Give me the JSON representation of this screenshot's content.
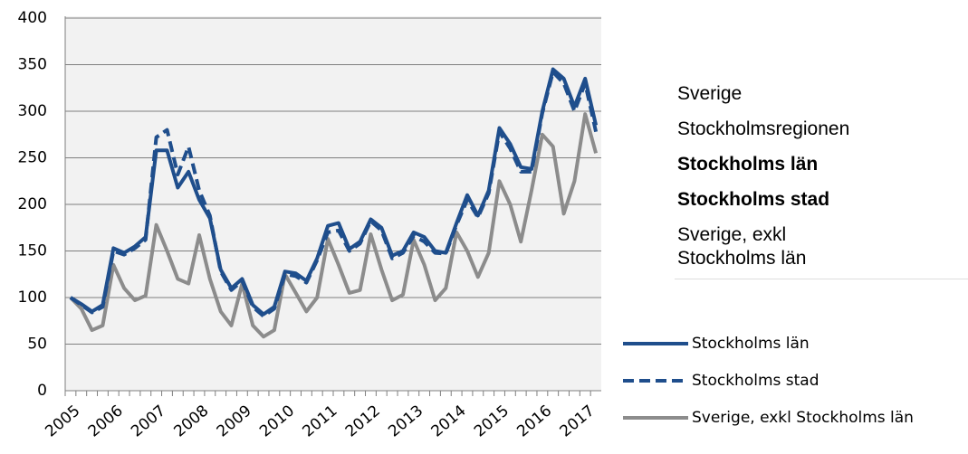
{
  "chart_data": {
    "type": "line",
    "categories": [
      "2005",
      null,
      null,
      null,
      "2006",
      null,
      null,
      null,
      "2007",
      null,
      null,
      null,
      "2008",
      null,
      null,
      null,
      "2009",
      null,
      null,
      null,
      "2010",
      null,
      null,
      null,
      "2011",
      null,
      null,
      null,
      "2012",
      null,
      null,
      null,
      "2013",
      null,
      null,
      null,
      "2014",
      null,
      null,
      null,
      "2015",
      null,
      null,
      null,
      "2016",
      null,
      null,
      null,
      "2017",
      null
    ],
    "series": [
      {
        "name": "Stockholms län",
        "color": "#1f4e8c",
        "dash": false,
        "values": [
          100,
          93,
          85,
          92,
          153,
          148,
          155,
          165,
          258,
          258,
          218,
          235,
          205,
          185,
          130,
          110,
          120,
          92,
          82,
          90,
          128,
          126,
          118,
          142,
          177,
          180,
          152,
          160,
          184,
          175,
          145,
          150,
          170,
          165,
          150,
          148,
          180,
          210,
          188,
          215,
          282,
          265,
          240,
          238,
          300,
          345,
          335,
          305,
          335,
          285
        ]
      },
      {
        "name": "Stockholms stad",
        "color": "#1f4e8c",
        "dash": true,
        "values": [
          100,
          92,
          84,
          90,
          150,
          146,
          153,
          162,
          272,
          280,
          232,
          262,
          215,
          188,
          128,
          108,
          118,
          90,
          80,
          88,
          125,
          123,
          116,
          140,
          170,
          172,
          150,
          158,
          182,
          172,
          142,
          148,
          166,
          160,
          148,
          147,
          178,
          205,
          186,
          212,
          278,
          260,
          235,
          235,
          298,
          342,
          330,
          300,
          330,
          278
        ]
      },
      {
        "name": "Sverige, exkl Stockholms län",
        "color": "#8c8c8c",
        "dash": false,
        "values": [
          100,
          88,
          65,
          70,
          135,
          110,
          97,
          102,
          178,
          150,
          120,
          115,
          167,
          120,
          85,
          70,
          115,
          70,
          58,
          65,
          125,
          105,
          85,
          100,
          163,
          135,
          105,
          108,
          168,
          130,
          97,
          103,
          162,
          135,
          97,
          110,
          170,
          150,
          122,
          148,
          225,
          200,
          160,
          215,
          275,
          262,
          190,
          225,
          297,
          255
        ]
      }
    ],
    "ylim": [
      0,
      400
    ],
    "yticks": [
      0,
      50,
      100,
      150,
      200,
      250,
      300,
      350,
      400
    ],
    "grid": true
  },
  "side_list": [
    {
      "text": "Sverige",
      "bold": false
    },
    {
      "text": "Stockholmsregionen",
      "bold": false
    },
    {
      "text": "Stockholms län",
      "bold": true
    },
    {
      "text": "Stockholms stad",
      "bold": true
    },
    {
      "text": "Sverige, exkl Stockholms län",
      "bold": false
    }
  ]
}
